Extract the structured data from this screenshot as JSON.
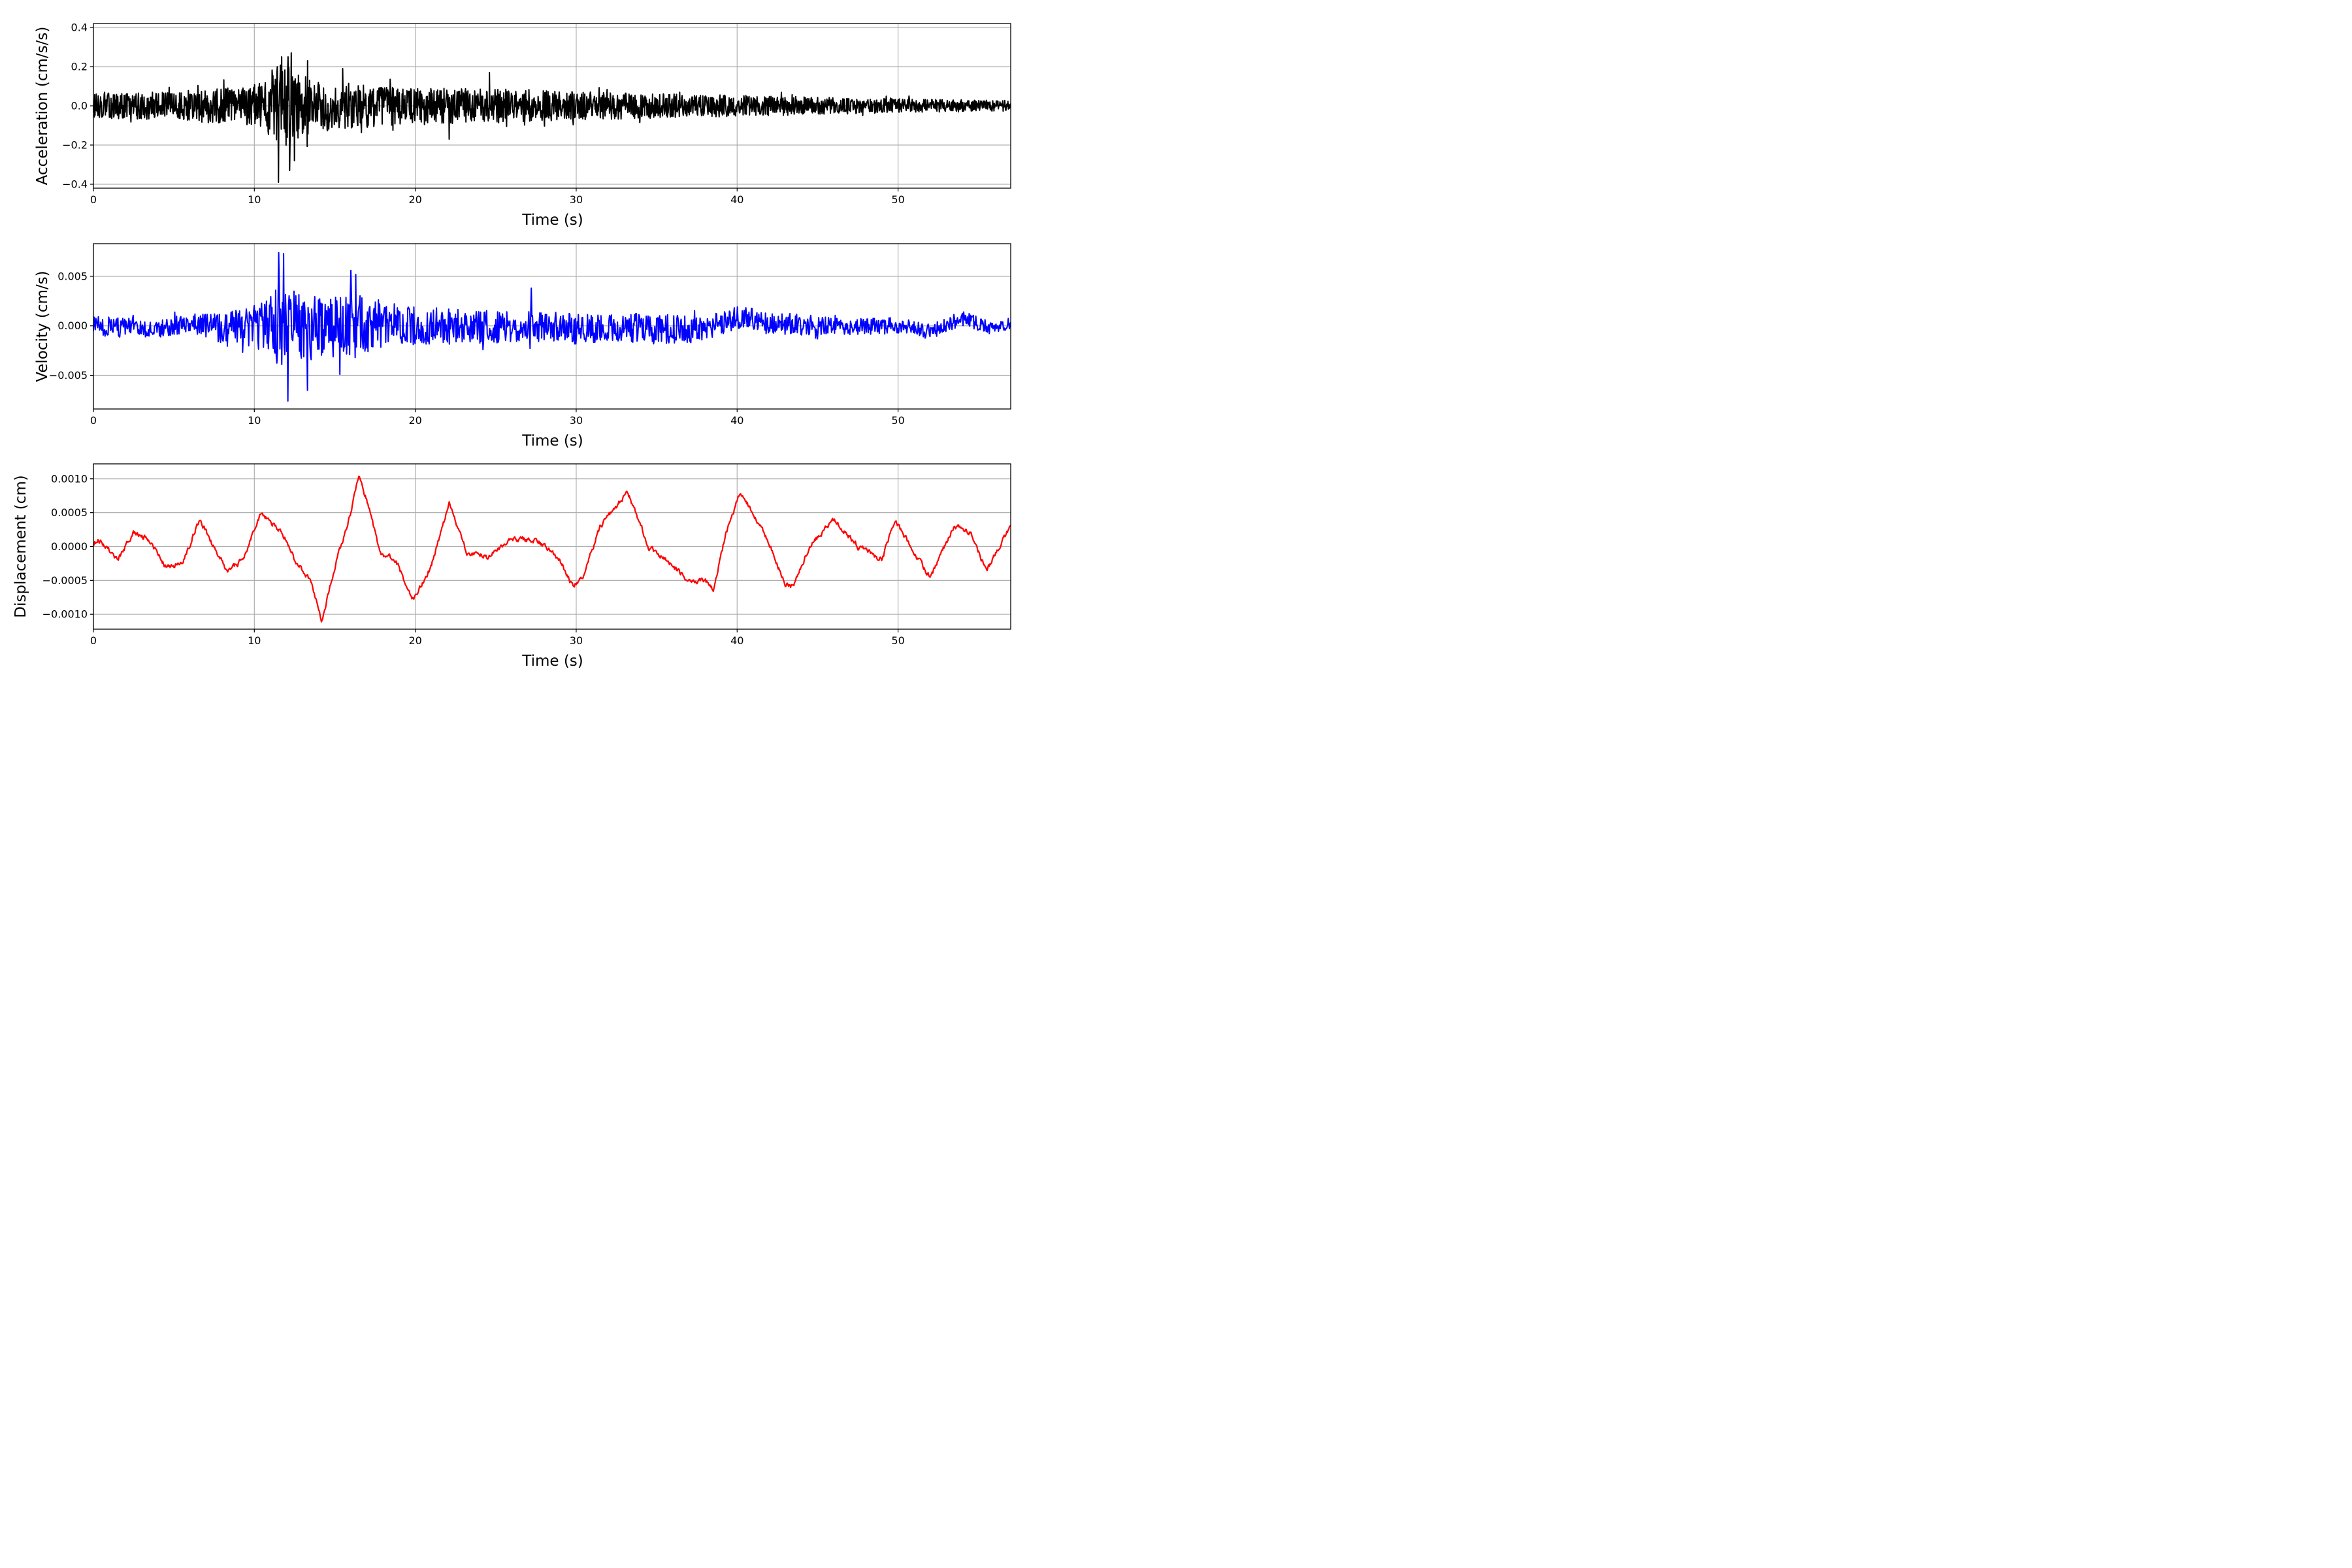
{
  "chart_data": [
    {
      "type": "line",
      "title": "",
      "xlabel": "Time (s)",
      "ylabel": "Acceleration (cm/s/s)",
      "xlim": [
        0,
        57
      ],
      "ylim": [
        -0.42,
        0.42
      ],
      "x_ticks": [
        0,
        10,
        20,
        30,
        40,
        50
      ],
      "y_ticks": [
        -0.4,
        -0.2,
        0.0,
        0.2,
        0.4
      ],
      "x_tick_labels": [
        "0",
        "10",
        "20",
        "30",
        "40",
        "50"
      ],
      "y_tick_labels": [
        "−0.4",
        "−0.2",
        "0.0",
        "0.2",
        "0.4"
      ],
      "grid": true,
      "color": "#000000",
      "envelope": [
        [
          0,
          0.07
        ],
        [
          5,
          0.08
        ],
        [
          9,
          0.11
        ],
        [
          10.5,
          0.13
        ],
        [
          11.4,
          0.24
        ],
        [
          12.3,
          0.22
        ],
        [
          13.5,
          0.15
        ],
        [
          16,
          0.13
        ],
        [
          20,
          0.1
        ],
        [
          25,
          0.1
        ],
        [
          30,
          0.08
        ],
        [
          40,
          0.06
        ],
        [
          50,
          0.04
        ],
        [
          57,
          0.03
        ]
      ],
      "peaks": [
        [
          11.5,
          -0.39
        ],
        [
          11.7,
          0.25
        ],
        [
          12.1,
          0.25
        ],
        [
          12.2,
          -0.33
        ],
        [
          12.3,
          0.27
        ],
        [
          12.5,
          -0.28
        ],
        [
          13.3,
          0.23
        ],
        [
          15.5,
          0.19
        ],
        [
          22.1,
          -0.17
        ],
        [
          24.6,
          0.17
        ]
      ]
    },
    {
      "type": "line",
      "title": "",
      "xlabel": "Time (s)",
      "ylabel": "Velocity (cm/s)",
      "xlim": [
        0,
        57
      ],
      "ylim": [
        -0.0084,
        0.0083
      ],
      "x_ticks": [
        0,
        10,
        20,
        30,
        40,
        50
      ],
      "y_ticks": [
        -0.005,
        0.0,
        0.005
      ],
      "x_tick_labels": [
        "0",
        "10",
        "20",
        "30",
        "40",
        "50"
      ],
      "y_tick_labels": [
        "−0.005",
        "0.000",
        "0.005"
      ],
      "grid": true,
      "color": "#0000ff",
      "envelope": [
        [
          0,
          0.0011
        ],
        [
          5,
          0.0011
        ],
        [
          7,
          0.0014
        ],
        [
          9,
          0.002
        ],
        [
          10.5,
          0.0028
        ],
        [
          11.5,
          0.0045
        ],
        [
          12.5,
          0.004
        ],
        [
          14,
          0.0035
        ],
        [
          16,
          0.0038
        ],
        [
          18,
          0.0028
        ],
        [
          20,
          0.0022
        ],
        [
          25,
          0.0018
        ],
        [
          30,
          0.0018
        ],
        [
          35,
          0.0017
        ],
        [
          40,
          0.0014
        ],
        [
          45,
          0.0011
        ],
        [
          50,
          0.0009
        ],
        [
          57,
          0.0007
        ]
      ],
      "trend": [
        [
          0,
          0
        ],
        [
          4,
          -0.0004
        ],
        [
          6,
          0.0005
        ],
        [
          8,
          -0.0003
        ],
        [
          10,
          0
        ],
        [
          20,
          0
        ],
        [
          38,
          -0.0004
        ],
        [
          40,
          0.0008
        ],
        [
          42,
          0.0003
        ],
        [
          45,
          0
        ],
        [
          50,
          0
        ],
        [
          52,
          -0.0006
        ],
        [
          54,
          0.0008
        ],
        [
          56,
          -0.0004
        ],
        [
          57,
          0.0003
        ]
      ],
      "peaks": [
        [
          11.5,
          0.0074
        ],
        [
          11.8,
          0.0073
        ],
        [
          12.1,
          -0.0076
        ],
        [
          13.3,
          -0.0065
        ],
        [
          16,
          0.0056
        ],
        [
          16.3,
          0.0052
        ],
        [
          15.3,
          -0.0049
        ],
        [
          27.2,
          0.0038
        ]
      ]
    },
    {
      "type": "line",
      "title": "",
      "xlabel": "Time (s)",
      "ylabel": "Displacement (cm)",
      "xlim": [
        0,
        57
      ],
      "ylim": [
        -0.00122,
        0.00122
      ],
      "x_ticks": [
        0,
        10,
        20,
        30,
        40,
        50
      ],
      "y_ticks": [
        -0.001,
        -0.0005,
        0.0,
        0.0005,
        0.001
      ],
      "x_tick_labels": [
        "0",
        "10",
        "20",
        "30",
        "40",
        "50"
      ],
      "y_tick_labels": [
        "−0.0010",
        "−0.0005",
        "0.0000",
        "0.0005",
        "0.0010"
      ],
      "grid": true,
      "color": "#ff0000",
      "x": [
        0,
        0.3,
        0.8,
        1.5,
        2.5,
        3.5,
        4.5,
        5.5,
        6.6,
        7.5,
        8.3,
        9.3,
        10.4,
        11.3,
        12,
        12.5,
        13.5,
        14.2,
        15,
        16,
        16.5,
        17.1,
        17.8,
        18.8,
        19.8,
        21,
        22.1,
        23.2,
        24.5,
        26,
        27.5,
        29,
        29.8,
        30.5,
        31.5,
        33.2,
        34.5,
        36,
        37,
        38,
        38.5,
        39.3,
        40.2,
        41.5,
        43,
        43.5,
        44.5,
        46,
        47.5,
        49,
        49.8,
        51,
        52,
        53.5,
        54.5,
        55.5,
        57
      ],
      "y": [
        5e-05,
        0.0001,
        0.0,
        -0.0002,
        0.0002,
        0.0001,
        -0.0003,
        -0.00025,
        0.0004,
        0.0,
        -0.00035,
        -0.0002,
        0.0005,
        0.0003,
        0.0001,
        -0.0002,
        -0.0005,
        -0.0011,
        -0.0003,
        0.0005,
        0.00105,
        0.0006,
        -0.0001,
        -0.0002,
        -0.0008,
        -0.0003,
        0.00065,
        -0.0001,
        -0.00015,
        0.0001,
        0.0001,
        -0.0002,
        -0.0006,
        -0.0004,
        0.0003,
        0.0008,
        0.0,
        -0.0003,
        -0.0005,
        -0.0005,
        -0.00065,
        0.0002,
        0.0008,
        0.0003,
        -0.00055,
        -0.0006,
        0.0,
        0.0004,
        0.0,
        -0.0002,
        0.0004,
        -0.0001,
        -0.00045,
        0.0003,
        0.0002,
        -0.00035,
        0.0003
      ]
    }
  ]
}
